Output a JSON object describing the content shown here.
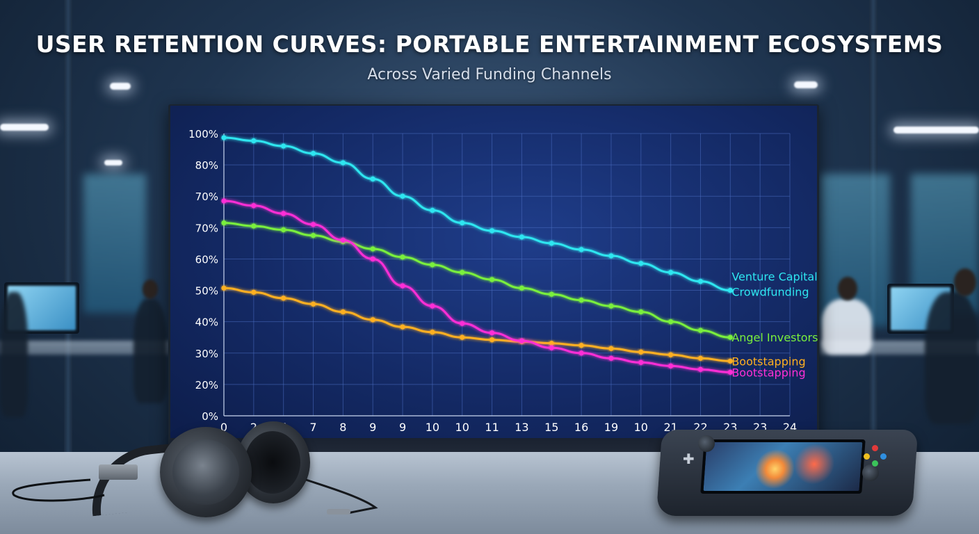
{
  "title": "USER RETENTION CURVES: PORTABLE ENTERTAINMENT ECOSYSTEMS",
  "subtitle": "Across Varied Funding Channels",
  "colors": {
    "venture_capital": "#2ee6f0",
    "angel_investors": "#7af03c",
    "bootstrapping_orange": "#ffb020",
    "bootstrapping_magenta": "#ff2fd6",
    "grid": "#4a6cc0"
  },
  "chart_data": {
    "type": "line",
    "title": "USER RETENTION CURVES: PORTABLE ENTERTAINMENT ECOSYSTEMS",
    "subtitle": "Across Varied Funding Channels",
    "xlabel": "",
    "ylabel": "",
    "y_tick_labels": [
      "100%",
      "80%",
      "70%",
      "70%",
      "60%",
      "50%",
      "40%",
      "30%",
      "20%",
      "0%"
    ],
    "x_tick_labels": [
      "0",
      "2",
      "5",
      "7",
      "8",
      "9",
      "9",
      "10",
      "10",
      "11",
      "13",
      "15",
      "16",
      "19",
      "10",
      "21",
      "22",
      "23",
      "23",
      "24"
    ],
    "grid": true,
    "legend_placement": "right, inline labels at line ends",
    "series": [
      {
        "name": "Venture Capital",
        "color_key": "venture_capital",
        "values": [
          98,
          96.5,
          94,
          90.5,
          86,
          80.5,
          75,
          70.5,
          66.5,
          64,
          62,
          60,
          58,
          56,
          54,
          52,
          50,
          48
        ]
      },
      {
        "name": "Crowdfunding",
        "color_key": "venture_capital",
        "values": []
      },
      {
        "name": "Angel Investors",
        "color_key": "angel_investors",
        "values": [
          66.5,
          65.5,
          64.3,
          62.5,
          60.5,
          58.2,
          55.6,
          53.7,
          52,
          50.4,
          48.5,
          47,
          45.5,
          44,
          42.5,
          40,
          37.5,
          35.5
        ]
      },
      {
        "name": "Bootstapping",
        "color_key": "bootstrapping_orange",
        "values": [
          48.5,
          47.5,
          46,
          44.5,
          42.5,
          40.5,
          38.5,
          37,
          35.5,
          34.8,
          34.3,
          33.8,
          33.2,
          32.3,
          31.3,
          30.5,
          29.5,
          28.7
        ]
      },
      {
        "name": "Bootstapping",
        "color_key": "bootstrapping_magenta",
        "values": [
          73.5,
          72,
          69.5,
          66,
          61,
          55,
          49,
          44,
          39.5,
          36.8,
          34.5,
          32.5,
          31,
          29.5,
          28.3,
          27.3,
          26.3,
          25.5
        ]
      }
    ]
  }
}
